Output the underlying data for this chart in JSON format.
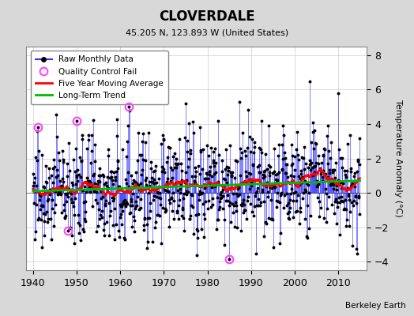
{
  "title": "CLOVERDALE",
  "subtitle": "45.205 N, 123.893 W (United States)",
  "credit": "Berkeley Earth",
  "ylabel": "Temperature Anomaly (°C)",
  "xlim": [
    1938.5,
    2016.5
  ],
  "ylim": [
    -4.5,
    8.5
  ],
  "yticks": [
    -4,
    -2,
    0,
    2,
    4,
    6,
    8
  ],
  "xticks": [
    1940,
    1950,
    1960,
    1970,
    1980,
    1990,
    2000,
    2010
  ],
  "bg_color": "#d8d8d8",
  "plot_bg_color": "#ffffff",
  "line_color": "#3333ff",
  "moving_avg_color": "#ff0000",
  "trend_color": "#00bb00",
  "qc_fail_color": "#ff44ff",
  "start_year": 1940,
  "end_year": 2014,
  "seed": 77
}
